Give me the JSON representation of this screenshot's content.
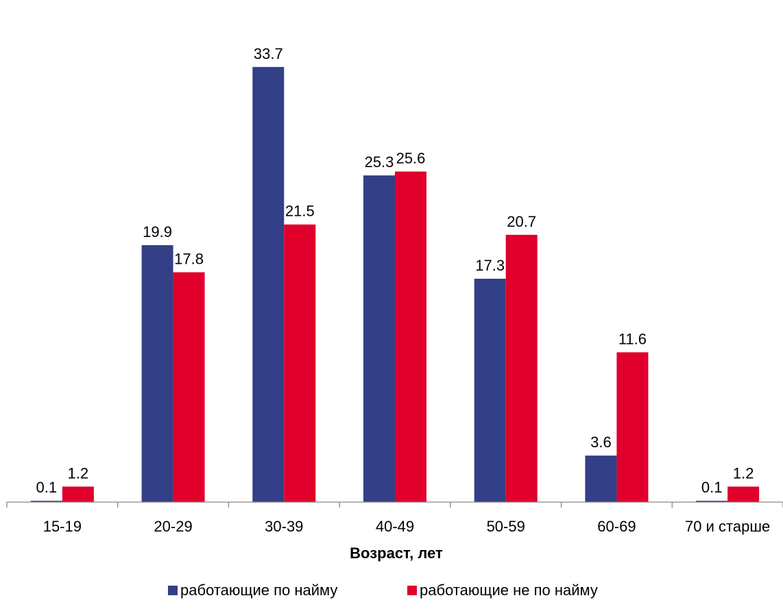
{
  "chart_data": {
    "type": "bar",
    "title": "",
    "xlabel": "Возраст, лет",
    "ylabel": "",
    "categories": [
      "15-19",
      "20-29",
      "30-39",
      "40-49",
      "50-59",
      "60-69",
      "70 и старше"
    ],
    "series": [
      {
        "name": "работающие по найму",
        "color": "#333F86",
        "values": [
          0.1,
          19.9,
          33.7,
          25.3,
          17.3,
          3.6,
          0.1
        ]
      },
      {
        "name": "работающие не по найму",
        "color": "#E0002B",
        "values": [
          1.2,
          17.8,
          21.5,
          25.6,
          20.7,
          11.6,
          1.2
        ]
      }
    ],
    "ylim": [
      0,
      35.5
    ],
    "grid": false,
    "legend_position": "bottom",
    "data_labels": true
  }
}
